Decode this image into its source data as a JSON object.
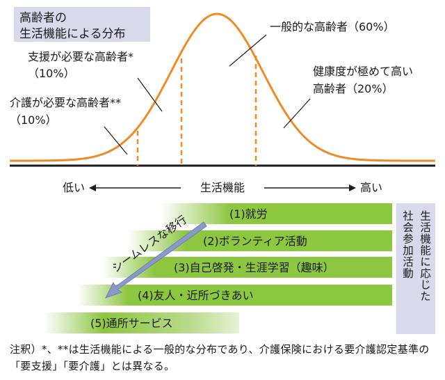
{
  "title_lines": [
    "高齢者の",
    "生活機能による分布"
  ],
  "segments": {
    "care": {
      "lines": [
        "介護が必要な高齢者**",
        "（10%）"
      ],
      "share_percent": 10
    },
    "support": {
      "lines": [
        "支援が必要な高齢者*",
        "（10%）"
      ],
      "share_percent": 10
    },
    "general": {
      "lines": [
        "一般的な高齢者（60%）"
      ],
      "share_percent": 60
    },
    "healthy": {
      "lines": [
        "健康度が極めて高い",
        "高齢者（20%）"
      ],
      "share_percent": 20
    }
  },
  "axis": {
    "low": "低い",
    "label": "生活機能",
    "high": "高い"
  },
  "arrow_label": "シームレスな移行",
  "bars": [
    {
      "label": "(1)就労"
    },
    {
      "label": "(2)ボランティア活動"
    },
    {
      "label": "(3)自己啓発・生涯学習（趣味）"
    },
    {
      "label": "(4)友人・近所づきあい"
    },
    {
      "label": "(5)通所サービス"
    }
  ],
  "side_label_columns": [
    "生活機能に応じた",
    "社会参加活動"
  ],
  "note": "注釈）*、**は生活機能による一般的な分布であり、介護保険における要介護認定基準の「要支援」「要介護」とは異なる。",
  "colors": {
    "curve": "#F08A24",
    "bar": "#8DC63F",
    "bar_light": "#E6F2D5",
    "label_box": "#D9D9EC",
    "arrow": "#7F8FBF"
  }
}
